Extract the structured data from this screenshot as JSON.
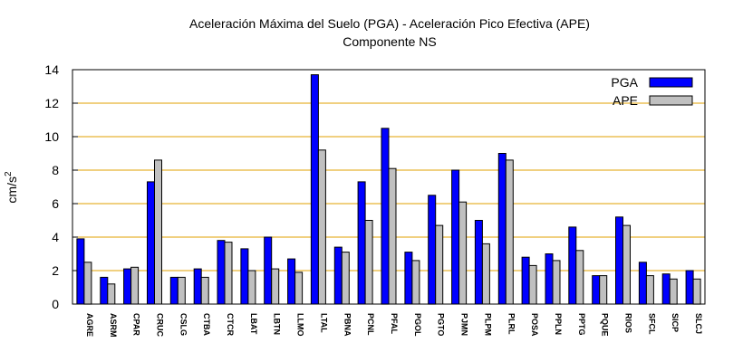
{
  "chart_data": {
    "type": "bar",
    "title_line1": "Aceleración Máxima del Suelo (PGA) -  Aceleración Pico Efectiva (APE)",
    "title_line2": "Componente NS",
    "ylabel": "cm/s",
    "ylabel_sup": "2",
    "xlabel": "",
    "ylim": [
      0,
      14
    ],
    "yticks": [
      0,
      2,
      4,
      6,
      8,
      10,
      12,
      14
    ],
    "grid": true,
    "legend_position": "top-right",
    "categories": [
      "AGRE",
      "ASRM",
      "CPAR",
      "CRUC",
      "CSLG",
      "CTBA",
      "CTCR",
      "LBAT",
      "LBTN",
      "LLMO",
      "LTAL",
      "PBNA",
      "PCNL",
      "PFAL",
      "PGOL",
      "PGTO",
      "PJMN",
      "PLPM",
      "PLRL",
      "POSA",
      "PPLN",
      "PPTG",
      "PQUE",
      "RIOS",
      "SFCL",
      "SICP",
      "SLCJ"
    ],
    "series": [
      {
        "name": "PGA",
        "color": "#0000ff",
        "values": [
          3.9,
          1.6,
          2.1,
          7.3,
          1.6,
          2.1,
          3.8,
          3.3,
          4.0,
          2.7,
          13.7,
          3.4,
          7.3,
          10.5,
          3.1,
          6.5,
          8.0,
          5.0,
          9.0,
          2.8,
          3.0,
          4.6,
          1.7,
          5.2,
          2.5,
          1.8,
          2.0
        ]
      },
      {
        "name": "APE",
        "color": "#c0c0c0",
        "values": [
          2.5,
          1.2,
          2.2,
          8.6,
          1.6,
          1.6,
          3.7,
          2.0,
          2.1,
          1.9,
          9.2,
          3.1,
          5.0,
          8.1,
          2.6,
          4.7,
          6.1,
          3.6,
          8.6,
          2.3,
          2.6,
          3.2,
          1.7,
          4.7,
          1.7,
          1.5,
          1.5
        ]
      }
    ]
  },
  "colors": {
    "grid": "#e0a000",
    "axis": "#000000",
    "bar_outline": "#000000"
  }
}
